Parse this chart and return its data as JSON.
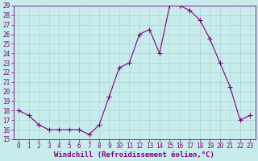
{
  "x": [
    0,
    1,
    2,
    3,
    4,
    5,
    6,
    7,
    8,
    9,
    10,
    11,
    12,
    13,
    14,
    15,
    16,
    17,
    18,
    19,
    20,
    21,
    22,
    23
  ],
  "y": [
    18,
    17.5,
    16.5,
    16,
    16,
    16,
    16,
    15.5,
    16.5,
    19.5,
    22.5,
    23,
    26,
    26.5,
    24,
    29,
    29,
    28.5,
    27.5,
    25.5,
    23,
    20.5,
    17,
    17.5
  ],
  "line_color": "#800080",
  "marker": "+",
  "bg_color": "#c8ecec",
  "grid_color": "#aad4d4",
  "xlabel": "Windchill (Refroidissement éolien,°C)",
  "xlim": [
    -0.5,
    23.5
  ],
  "ylim": [
    15,
    29
  ],
  "yticks": [
    15,
    16,
    17,
    18,
    19,
    20,
    21,
    22,
    23,
    24,
    25,
    26,
    27,
    28,
    29
  ],
  "xticks": [
    0,
    1,
    2,
    3,
    4,
    5,
    6,
    7,
    8,
    9,
    10,
    11,
    12,
    13,
    14,
    15,
    16,
    17,
    18,
    19,
    20,
    21,
    22,
    23
  ],
  "tick_color": "#800080",
  "axis_color": "#800080",
  "label_color": "#800080",
  "tick_fontsize": 5.5,
  "xlabel_fontsize": 6.5
}
